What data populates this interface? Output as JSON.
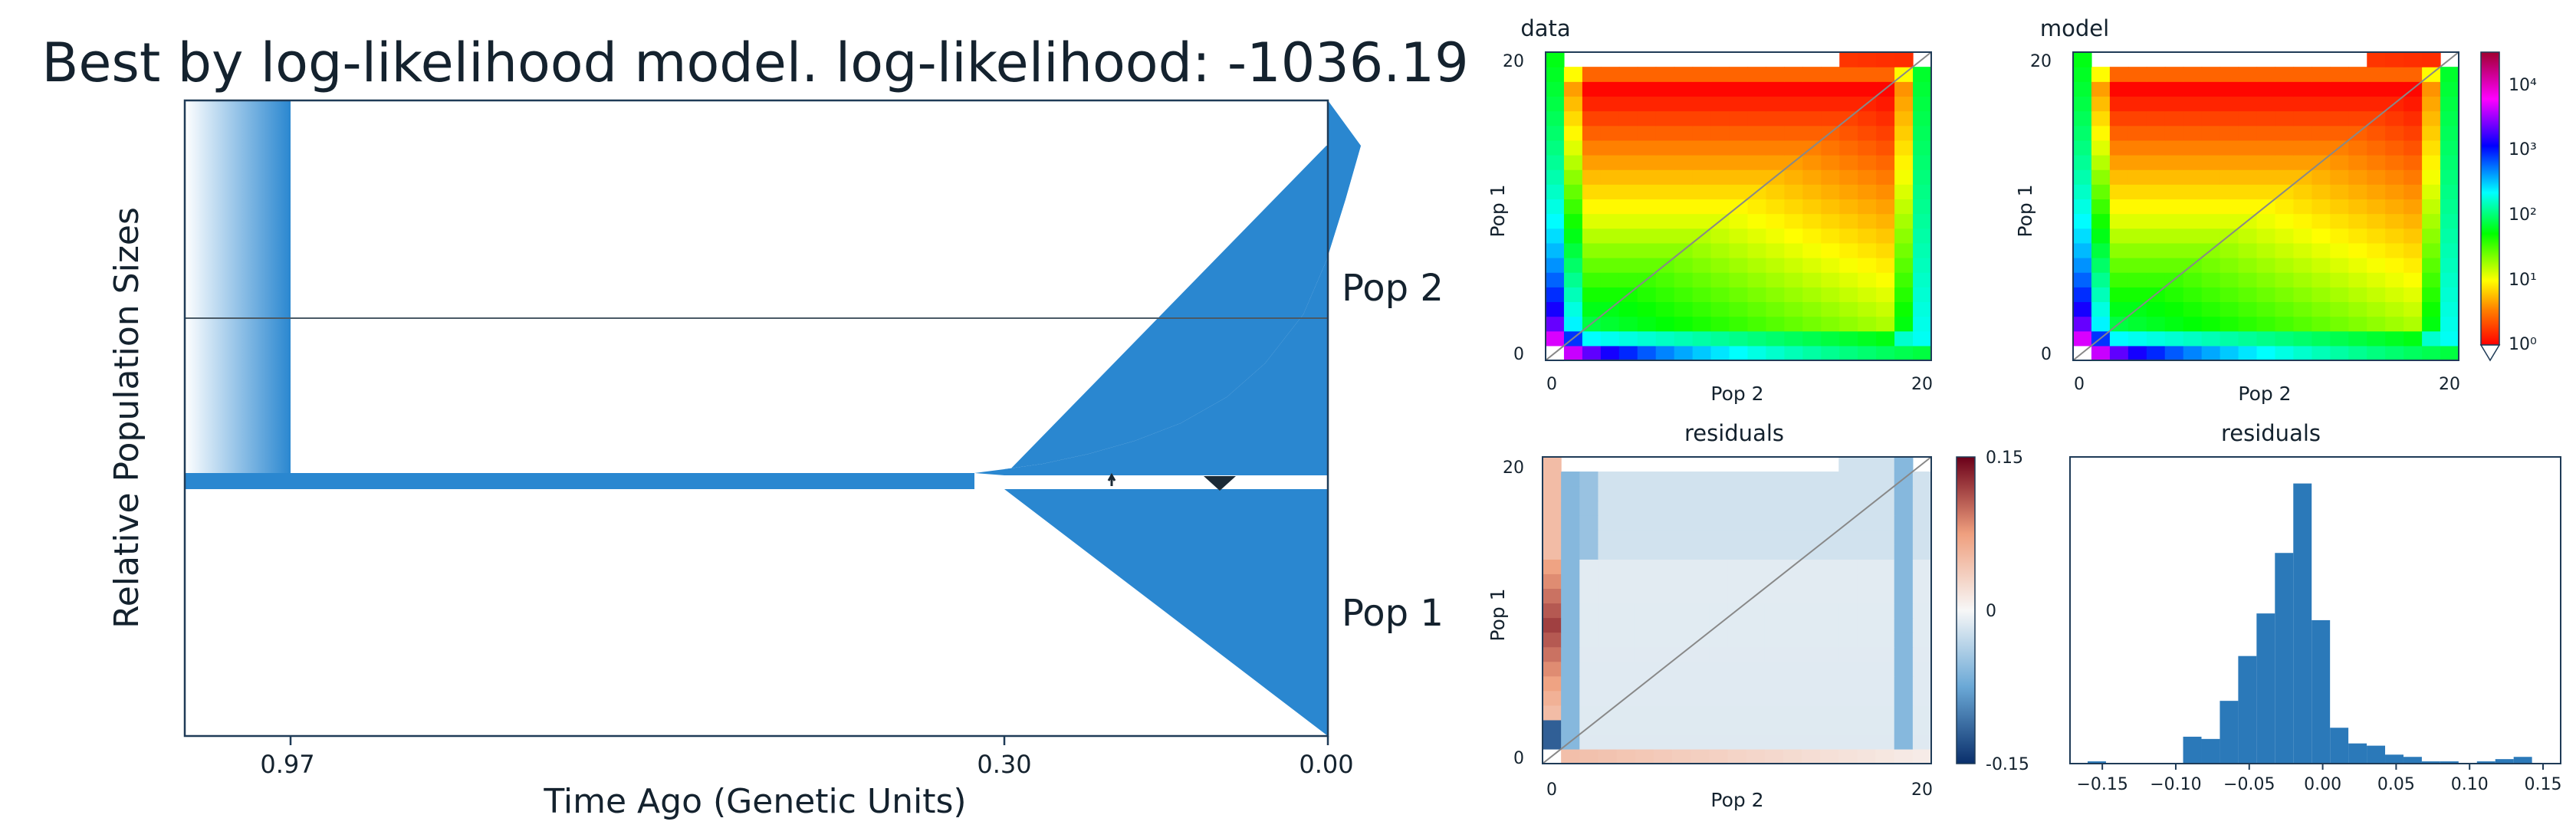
{
  "colors": {
    "pop_fill": "#2a87d0",
    "axis": "#1f3b57",
    "text": "#14222e",
    "hist_bar": "#2b79b9",
    "diagonal": "#888888"
  },
  "chart_data": [
    {
      "type": "area",
      "title": "Best by log-likelihood model. log-likelihood: -1036.19",
      "xlabel": "Time Ago (Genetic Units)",
      "ylabel": "Relative Population Sizes",
      "x_ticks": [
        "0.97",
        "0.30",
        "0.00"
      ],
      "x_tick_values": [
        0.97,
        0.3,
        0.0
      ],
      "series": [
        {
          "name": "Pop 1",
          "time": [
            0.3,
            0.0
          ],
          "relative_size": [
            0.02,
            1.0
          ]
        },
        {
          "name": "Pop 2",
          "time": [
            0.3,
            0.25,
            0.2,
            0.15,
            0.1,
            0.05,
            0.0
          ],
          "relative_size": [
            0.02,
            0.04,
            0.07,
            0.12,
            0.22,
            0.45,
            1.0
          ]
        }
      ],
      "ancestral_size": 0.02,
      "split_time": 0.3,
      "ancestral_change_time": 0.97
    },
    {
      "type": "heatmap",
      "title": "data",
      "xlabel": "Pop 2",
      "ylabel": "Pop 1",
      "x_ticks": [
        "0",
        "20"
      ],
      "y_ticks": [
        "0",
        "20"
      ],
      "grid_size": 21,
      "colormap": "spectral",
      "scale": "log",
      "top_row_masked_columns": [
        1,
        2,
        3,
        4,
        5,
        6,
        7,
        8,
        9,
        10,
        11,
        12,
        13,
        14,
        15
      ]
    },
    {
      "type": "heatmap",
      "title": "model",
      "xlabel": "Pop 2",
      "ylabel": "Pop 1",
      "x_ticks": [
        "0",
        "20"
      ],
      "y_ticks": [
        "0",
        "20"
      ],
      "grid_size": 21,
      "colormap": "spectral",
      "scale": "log",
      "colorbar_ticks": [
        "10⁰",
        "10¹",
        "10²",
        "10³",
        "10⁴"
      ],
      "colorbar_values": [
        1,
        10,
        100,
        1000,
        10000
      ]
    },
    {
      "type": "heatmap",
      "title": "residuals",
      "xlabel": "Pop 2",
      "ylabel": "Pop 1",
      "x_ticks": [
        "0",
        "20"
      ],
      "y_ticks": [
        "0",
        "20"
      ],
      "grid_size": 21,
      "colormap": "diverging red-blue",
      "colorbar_ticks": [
        "0.15",
        "0",
        "-0.15"
      ],
      "colorbar_values": [
        0.15,
        0,
        -0.15
      ]
    },
    {
      "type": "bar",
      "title": "residuals",
      "x_ticks": [
        "−0.15",
        "−0.10",
        "−0.05",
        "0.00",
        "0.05",
        "0.10",
        "0.15"
      ],
      "x_tick_values": [
        -0.15,
        -0.1,
        -0.05,
        0.0,
        0.05,
        0.1,
        0.15
      ],
      "bin_width": 0.0125,
      "bins": [
        {
          "start": -0.16,
          "count": 1
        },
        {
          "start": -0.095,
          "count": 12
        },
        {
          "start": -0.0825,
          "count": 11
        },
        {
          "start": -0.07,
          "count": 28
        },
        {
          "start": -0.0575,
          "count": 48
        },
        {
          "start": -0.045,
          "count": 67
        },
        {
          "start": -0.0325,
          "count": 94
        },
        {
          "start": -0.02,
          "count": 125
        },
        {
          "start": -0.0075,
          "count": 64
        },
        {
          "start": 0.005,
          "count": 16
        },
        {
          "start": 0.0175,
          "count": 9
        },
        {
          "start": 0.03,
          "count": 8
        },
        {
          "start": 0.0425,
          "count": 4
        },
        {
          "start": 0.055,
          "count": 3
        },
        {
          "start": 0.0675,
          "count": 1
        },
        {
          "start": 0.08,
          "count": 1
        },
        {
          "start": 0.0925,
          "count": 0
        },
        {
          "start": 0.105,
          "count": 1
        },
        {
          "start": 0.1175,
          "count": 2
        },
        {
          "start": 0.13,
          "count": 3
        }
      ],
      "ylim": [
        0,
        130
      ]
    }
  ]
}
